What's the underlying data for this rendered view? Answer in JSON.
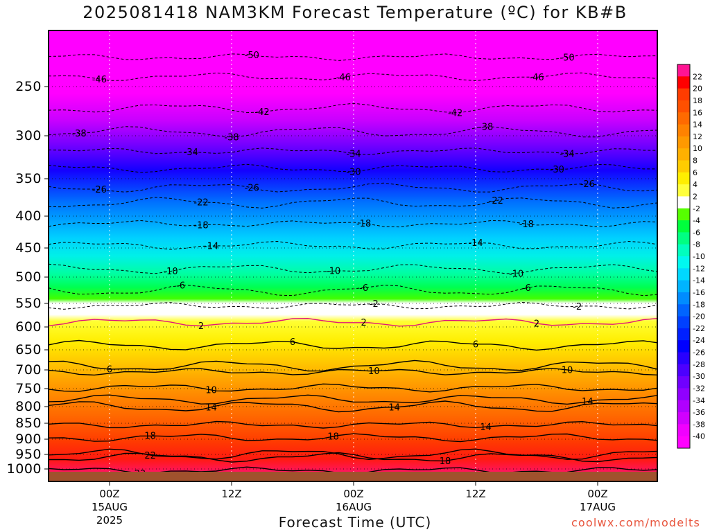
{
  "title": "2025081418 NAM3KM Forecast Temperature (ºC) for KB#B",
  "xlabel": "Forecast Time (UTC)",
  "credit": "coolwx.com/modelts",
  "chart_data": {
    "type": "contour",
    "title": "2025081418 NAM3KM Forecast Temperature (ºC) for KB#B",
    "xlabel": "Forecast Time (UTC)",
    "ylabel": "",
    "y_axis": {
      "scale": "pressure (descending downward)",
      "ticks": [
        250,
        300,
        350,
        400,
        450,
        500,
        550,
        600,
        650,
        700,
        750,
        800,
        850,
        900,
        950,
        1000
      ],
      "range": [
        200,
        1030
      ]
    },
    "x_axis": {
      "unit": "forecast hour",
      "range": [
        -6,
        54
      ],
      "ticks": [
        {
          "hour": 0,
          "lines": [
            "00Z",
            "15AUG",
            "2025"
          ]
        },
        {
          "hour": 12,
          "lines": [
            "12Z"
          ]
        },
        {
          "hour": 24,
          "lines": [
            "00Z",
            "16AUG"
          ]
        },
        {
          "hour": 36,
          "lines": [
            "12Z"
          ]
        },
        {
          "hour": 48,
          "lines": [
            "00Z",
            "17AUG"
          ]
        }
      ]
    },
    "colorbar": {
      "labels": [
        22,
        20,
        18,
        16,
        14,
        12,
        10,
        8,
        6,
        4,
        2,
        -2,
        -4,
        -6,
        -8,
        -10,
        -12,
        -14,
        -16,
        -18,
        -20,
        -22,
        -24,
        -26,
        -28,
        -30,
        -32,
        -34,
        -36,
        -38,
        -40
      ],
      "colors": [
        "#ff1493",
        "#ff0000",
        "#ff3c00",
        "#ff5000",
        "#ff6a00",
        "#ff8200",
        "#ff9900",
        "#ffb000",
        "#ffcc00",
        "#ffee00",
        "#ffff3c",
        "#ffffff",
        "#56ff00",
        "#00ff3c",
        "#00ff82",
        "#00ffbe",
        "#00f8f0",
        "#00d8ff",
        "#00b4ff",
        "#008cff",
        "#0064ff",
        "#0040ff",
        "#0020ff",
        "#0000ff",
        "#2800ff",
        "#4c00ff",
        "#7000ff",
        "#9000ff",
        "#b000ff",
        "#d000ff",
        "#f000ff",
        "#ff00ff"
      ]
    },
    "isotherms": [
      {
        "value": -50,
        "pressure": 220,
        "label_hours": [
          14,
          45
        ]
      },
      {
        "value": -46,
        "pressure": 240,
        "label_hours": [
          -1,
          23,
          42
        ]
      },
      {
        "value": -42,
        "pressure": 272,
        "label_hours": [
          15,
          34
        ]
      },
      {
        "value": -38,
        "pressure": 296,
        "label_hours": [
          -3,
          12,
          37
        ]
      },
      {
        "value": -34,
        "pressure": 318,
        "label_hours": [
          8,
          24,
          45
        ]
      },
      {
        "value": -30,
        "pressure": 338,
        "label_hours": [
          24,
          44
        ]
      },
      {
        "value": -26,
        "pressure": 362,
        "label_hours": [
          -1,
          14,
          47
        ]
      },
      {
        "value": -22,
        "pressure": 382,
        "label_hours": [
          9,
          38
        ]
      },
      {
        "value": -18,
        "pressure": 412,
        "label_hours": [
          9,
          25,
          41
        ]
      },
      {
        "value": -14,
        "pressure": 446,
        "label_hours": [
          10,
          36
        ]
      },
      {
        "value": -10,
        "pressure": 486,
        "label_hours": [
          6,
          22,
          40
        ]
      },
      {
        "value": -6,
        "pressure": 525,
        "label_hours": [
          7,
          25,
          41
        ]
      },
      {
        "value": -2,
        "pressure": 555,
        "label_hours": [
          26,
          46
        ]
      },
      {
        "value": 2,
        "pressure": 590,
        "label_hours": [
          9,
          25,
          42
        ]
      },
      {
        "value": 6,
        "pressure": 640,
        "label_hours": [
          18,
          36
        ]
      },
      {
        "value": 6,
        "pressure": 690,
        "label_hours": [
          0
        ]
      },
      {
        "value": 10,
        "pressure": 705,
        "label_hours": [
          26,
          45
        ]
      },
      {
        "value": 10,
        "pressure": 748,
        "label_hours": [
          10
        ]
      },
      {
        "value": 14,
        "pressure": 780,
        "label_hours": [
          47
        ]
      },
      {
        "value": 14,
        "pressure": 800,
        "label_hours": [
          10,
          28
        ]
      },
      {
        "value": 14,
        "pressure": 855,
        "label_hours": [
          37
        ]
      },
      {
        "value": 18,
        "pressure": 895,
        "label_hours": [
          4,
          22
        ]
      },
      {
        "value": 18,
        "pressure": 960,
        "label_hours": [
          33
        ]
      },
      {
        "value": 22,
        "pressure": 950,
        "label_hours": [
          4
        ]
      },
      {
        "value": 22,
        "pressure": 1005,
        "label_hours": [
          3
        ]
      }
    ]
  }
}
